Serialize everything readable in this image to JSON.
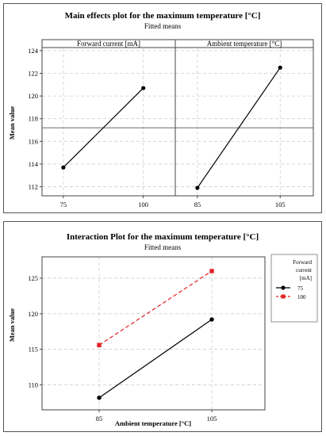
{
  "main_effects": {
    "title": "Main effects plot for the maximum temperature [°C]",
    "subtitle": "Fitted means",
    "ylabel": "Mean value",
    "mean_line": 117.2,
    "yticks": [
      112,
      114,
      116,
      118,
      120,
      122,
      124
    ]
  },
  "interaction": {
    "title": "Interaction Plot for the maximum temperature [°C]",
    "subtitle": "Fitted means",
    "xlabel": "Ambient temperature [°C]",
    "ylabel": "Mean value",
    "legend_title_lines": [
      "Forward",
      "current",
      "[mA]"
    ],
    "legend_labels": [
      "75",
      "100"
    ],
    "yticks": [
      110,
      115,
      120,
      125
    ]
  },
  "colors": {
    "series_75": "#000000",
    "series_100": "#e32222"
  },
  "chart_data": [
    {
      "type": "line",
      "title": "Main effects plot for the maximum temperature [°C]",
      "subtitle": "Fitted means",
      "panels": [
        {
          "name": "Forward current [mA]",
          "categories": [
            "75",
            "100"
          ],
          "values": [
            113.7,
            120.7
          ]
        },
        {
          "name": "Ambient temperature [°C]",
          "categories": [
            "85",
            "105"
          ],
          "values": [
            111.9,
            122.5
          ]
        }
      ],
      "ylabel": "Mean value",
      "ylim": [
        111.2,
        124.2
      ],
      "grid": true
    },
    {
      "type": "line",
      "title": "Interaction Plot for the maximum temperature [°C]",
      "subtitle": "Fitted means",
      "categories": [
        "85",
        "105"
      ],
      "series": [
        {
          "name": "75",
          "values": [
            108.2,
            119.2
          ]
        },
        {
          "name": "100",
          "values": [
            115.6,
            126.0
          ]
        }
      ],
      "xlabel": "Ambient temperature [°C]",
      "ylabel": "Mean value",
      "ylim": [
        106.5,
        128.0
      ],
      "legend": "right",
      "grid": true
    }
  ]
}
